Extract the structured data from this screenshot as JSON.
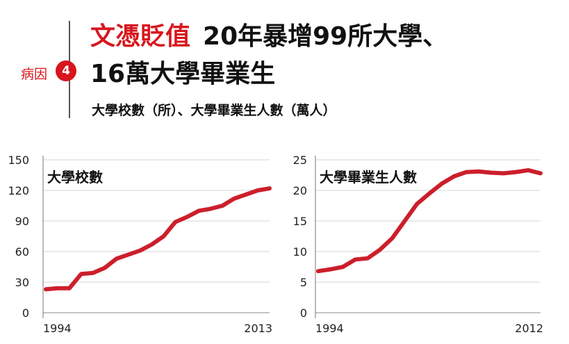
{
  "header": {
    "cause_label": "病因",
    "cause_number": "4",
    "title_red": "文憑貶值",
    "title_line1_rest": "20年暴增99所大學、",
    "title_line2": "16萬大學畢業生",
    "subtitle": "大學校數（所）、大學畢業生人數（萬人）"
  },
  "colors": {
    "accent": "#d7161e",
    "line": "#cc1f2b",
    "grid": "#d4d4d4"
  },
  "chart_data": [
    {
      "type": "line",
      "title": "大學校數",
      "xlabel": "",
      "ylabel": "",
      "xlim": [
        1994,
        2013
      ],
      "ylim": [
        0,
        150
      ],
      "y_ticks": [
        0,
        30,
        60,
        90,
        120,
        150
      ],
      "x_tick_labels": [
        "1994",
        "2013"
      ],
      "grid": true,
      "series": [
        {
          "x": [
            1994,
            1995,
            1996,
            1997,
            1998,
            1999,
            2000,
            2001,
            2002,
            2003,
            2004,
            2005,
            2006,
            2007,
            2008,
            2009,
            2010,
            2011,
            2012,
            2013
          ],
          "values": [
            23,
            24,
            24,
            38,
            39,
            44,
            53,
            57,
            61,
            67,
            75,
            89,
            94,
            100,
            102,
            105,
            112,
            116,
            120,
            122
          ]
        }
      ]
    },
    {
      "type": "line",
      "title": "大學畢業生人數",
      "xlabel": "",
      "ylabel": "",
      "xlim": [
        1994,
        2012
      ],
      "ylim": [
        0,
        25
      ],
      "y_ticks": [
        0,
        5,
        10,
        15,
        20,
        25
      ],
      "x_tick_labels": [
        "1994",
        "2012"
      ],
      "grid": true,
      "series": [
        {
          "x": [
            1994,
            1995,
            1996,
            1997,
            1998,
            1999,
            2000,
            2001,
            2002,
            2003,
            2004,
            2005,
            2006,
            2007,
            2008,
            2009,
            2010,
            2011,
            2012
          ],
          "values": [
            6.8,
            7.1,
            7.5,
            8.7,
            8.9,
            10.3,
            12.2,
            15.0,
            17.8,
            19.5,
            21.1,
            22.3,
            23.0,
            23.1,
            22.9,
            22.8,
            23.0,
            23.3,
            22.8
          ]
        }
      ]
    }
  ]
}
